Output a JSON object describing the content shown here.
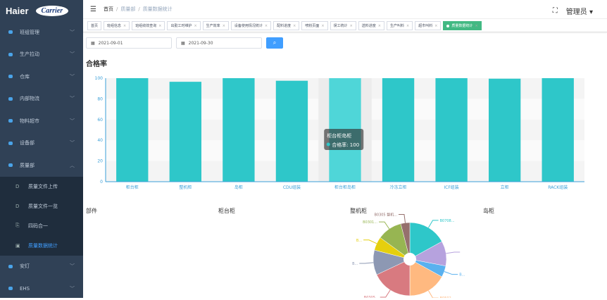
{
  "logo": {
    "brand1": "Haier",
    "brand2": "Carrier"
  },
  "sidebar": {
    "items": [
      {
        "label": "班组管理",
        "icon": "folder-icon"
      },
      {
        "label": "生产拉动",
        "icon": "folder-icon"
      },
      {
        "label": "仓库",
        "icon": "folder-icon"
      },
      {
        "label": "内部物流",
        "icon": "folder-icon"
      },
      {
        "label": "物料超市",
        "icon": "folder-icon"
      },
      {
        "label": "设备部",
        "icon": "user-icon"
      },
      {
        "label": "质量部",
        "icon": "folder-icon",
        "expanded": true
      }
    ],
    "subitems": [
      {
        "label": "质量文件上传",
        "icon": "D"
      },
      {
        "label": "质量文件一览",
        "icon": "D"
      },
      {
        "label": "四码合一",
        "icon": "⎘"
      },
      {
        "label": "质量数据统计",
        "icon": "▣",
        "active": true
      }
    ],
    "bottom": [
      {
        "label": "安灯"
      },
      {
        "label": "EHS"
      }
    ]
  },
  "header": {
    "breadcrumb": [
      "首页",
      "质量部",
      "质量数据统计"
    ],
    "user": "管理员"
  },
  "tabs": [
    "首页",
    "班组信息",
    "班组绩效查询",
    "出勤工时维护",
    "生产效率",
    "设备使用情况统计",
    "配料进度",
    "喷粉页面",
    "误工统计",
    "送料进度",
    "生产叫料",
    "超市叫料",
    "质量数据统计"
  ],
  "filters": {
    "start": "2021-09-01",
    "end": "2021-09-30",
    "search_icon": "search-icon"
  },
  "colors": {
    "bar": "#2ec7c9",
    "bar_hover": "#4fd6d8",
    "active_tab": "#42b983",
    "primary": "#409eff",
    "sidebar": "#304156"
  },
  "sections": {
    "t1": "部件",
    "t2": "柜台柜",
    "t3": "整机柜",
    "t4": "岛柜"
  },
  "chart_data": [
    {
      "type": "bar",
      "title": "合格率",
      "categories": [
        "柜台柜",
        "整机柜",
        "岛柜",
        "CDU组装",
        "柜台柜岛柜",
        "冷冻立柜",
        "ICF组装",
        "立柜",
        "RACK组装"
      ],
      "series": [
        {
          "name": "合格率",
          "values": [
            100,
            96.5,
            100,
            97.5,
            100,
            100,
            100,
            99.5,
            100
          ]
        }
      ],
      "ylim": [
        0,
        100
      ],
      "yticks": [
        0,
        20,
        40,
        60,
        80,
        100
      ],
      "grid": true,
      "tooltip": {
        "title": "柜台柜岛柜",
        "label": "合格率",
        "value": "100"
      }
    },
    {
      "type": "pie",
      "title": "整机柜",
      "labels": [
        "B0708...",
        "",
        "B...",
        "B0502...",
        "B0305...",
        "B...",
        "B...",
        "B0301...",
        "B0305 整机..."
      ],
      "values": [
        17,
        11,
        5,
        17,
        18,
        11,
        6,
        11,
        4
      ],
      "colors": [
        "#2ec7c9",
        "#b6a2de",
        "#5ab1ef",
        "#ffb980",
        "#d87a80",
        "#8d98b3",
        "#e5cf0d",
        "#97b552",
        "#95706d"
      ]
    }
  ]
}
